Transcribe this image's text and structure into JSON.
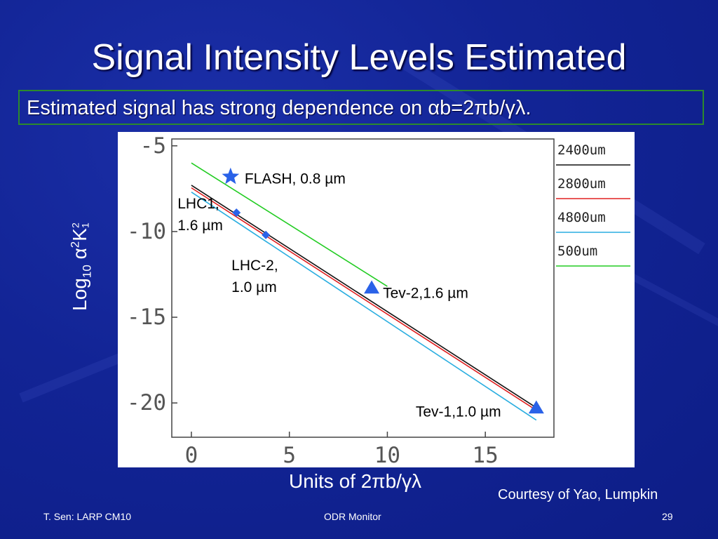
{
  "slide": {
    "title": "Signal Intensity Levels Estimated",
    "subtitle": "Estimated signal has strong dependence on αb=2πb/γλ.",
    "courtesy": "Courtesy of Yao, Lumpkin",
    "footer_left": "T. Sen: LARP CM10",
    "footer_center": "ODR Monitor",
    "page_number": "29"
  },
  "colors": {
    "background": "#122495",
    "subtitle_border": "#2c8a2c",
    "marker_blue": "#2a62e8"
  },
  "chart_data": {
    "type": "line",
    "ylabel": {
      "base": "Log",
      "base_sub": "10",
      "alpha": " α",
      "alpha_sup": "2",
      "K": "K",
      "K_sub": "1",
      "K_sup": "2"
    },
    "xlabel": "Units of 2πb/γλ",
    "xlim": [
      -1,
      18.5
    ],
    "ylim": [
      -22,
      -4.6
    ],
    "x_ticks": [
      0,
      5,
      10,
      15
    ],
    "x_tick_labels": [
      "0",
      "5",
      "10",
      "15"
    ],
    "y_ticks": [
      -5,
      -10,
      -15,
      -20
    ],
    "y_tick_labels": [
      "-5",
      "-10",
      "-15",
      "-20"
    ],
    "grid": false,
    "legend_position": "right",
    "series": [
      {
        "name": "2400um",
        "color": "#111111",
        "x": [
          0,
          17.5
        ],
        "y": [
          -7.3,
          -20.2
        ]
      },
      {
        "name": "2800um",
        "color": "#e02020",
        "x": [
          0,
          17.5
        ],
        "y": [
          -7.45,
          -20.35
        ]
      },
      {
        "name": "4800um",
        "color": "#2aaee0",
        "x": [
          0,
          17.6
        ],
        "y": [
          -7.7,
          -21.0
        ]
      },
      {
        "name": "500um",
        "color": "#22cc22",
        "x": [
          0,
          10
        ],
        "y": [
          -6.0,
          -13.2
        ]
      }
    ],
    "points": [
      {
        "label": "FLASH, 0.8 µm",
        "marker": "star",
        "x": 2.0,
        "y": -6.8
      },
      {
        "label_lines": [
          "LHC1,",
          "1.6 µm"
        ],
        "marker": "diamond",
        "x": 2.3,
        "y": -8.9
      },
      {
        "label_lines": [
          "LHC-2,",
          "1.0 µm"
        ],
        "marker": "diamond",
        "x": 3.8,
        "y": -10.2
      },
      {
        "label": "Tev-2,1.6 µm",
        "marker": "triangle",
        "x": 9.2,
        "y": -13.3
      },
      {
        "label": "Tev-1,1.0 µm",
        "marker": "triangle",
        "x": 17.6,
        "y": -20.3
      }
    ]
  }
}
